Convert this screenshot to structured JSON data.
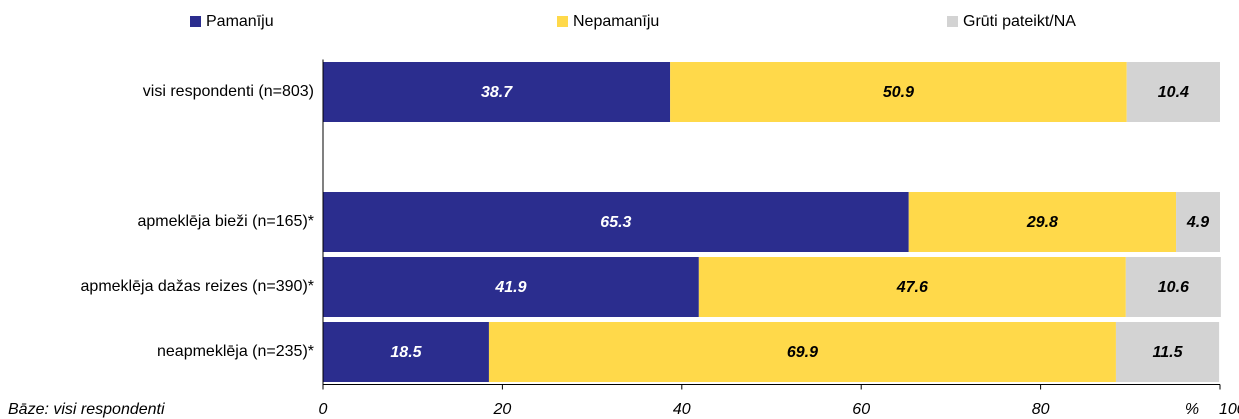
{
  "chart_data": {
    "type": "stacked_barh",
    "categories": [
      "visi respondenti (n=803)",
      null,
      "apmeklēja bieži (n=165)*",
      "apmeklēja dažas reizes (n=390)*",
      "neapmeklēja (n=235)*"
    ],
    "series": [
      {
        "name": "Pamanīju",
        "color": "#2b2d8e",
        "values": [
          38.7,
          null,
          65.3,
          41.9,
          18.5
        ]
      },
      {
        "name": "Nepamanīju",
        "color": "#ffd94a",
        "values": [
          50.9,
          null,
          29.8,
          47.6,
          69.9
        ]
      },
      {
        "name": "Grūti pateikt/NA",
        "color": "#d3d3d3",
        "values": [
          10.4,
          null,
          4.9,
          10.6,
          11.5
        ]
      }
    ],
    "xlim": [
      0,
      100
    ],
    "xticks": [
      0,
      20,
      40,
      60,
      80,
      100
    ],
    "x_label": "%",
    "note": "Bāze: visi respondenti",
    "legend": "top"
  }
}
